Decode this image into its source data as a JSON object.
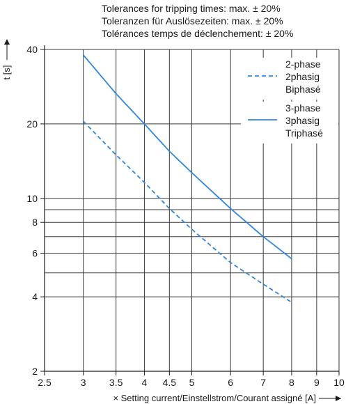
{
  "notes": [
    "Tolerances for tripping times: max. ± 20%",
    "Toleranzen für Auslösezeiten: max. ± 20%",
    "Tolérances temps de déclenchement: ± 20%"
  ],
  "chart_data": {
    "type": "line",
    "xlabel": "× Setting current/Einstellstrom/Courant assigné [A]",
    "ylabel": "t [s]",
    "x_scale": "log",
    "y_scale": "log",
    "xlim": [
      2.5,
      10
    ],
    "ylim": [
      2,
      40
    ],
    "x_ticks": [
      2.5,
      3,
      3.5,
      4,
      4.5,
      5,
      6,
      7,
      8,
      9,
      10
    ],
    "x_tick_labels": [
      "2.5",
      "3",
      "3.5",
      "4",
      "4.5",
      "5",
      "6",
      "7",
      "8",
      "9",
      "10"
    ],
    "y_ticks": [
      2,
      4,
      6,
      8,
      10,
      20,
      40
    ],
    "y_tick_labels": [
      "2",
      "4",
      "6",
      "8",
      "10",
      "20",
      "40"
    ],
    "y_grid_extra": [
      5,
      7,
      9
    ],
    "grid": true,
    "legend_position": "top-right",
    "series": [
      {
        "name": "2-phase\n2phasig\nBiphasé",
        "style": "dashed",
        "color": "#2e86de",
        "x": [
          3,
          3.5,
          4,
          4.5,
          5,
          6,
          7,
          8
        ],
        "y": [
          20.5,
          15.0,
          11.6,
          9.1,
          7.5,
          5.5,
          4.5,
          3.8
        ]
      },
      {
        "name": "3-phase\n3phasig\nTriphasé",
        "style": "solid",
        "color": "#2e86de",
        "x": [
          3,
          3.5,
          4,
          4.5,
          5,
          6,
          7,
          8
        ],
        "y": [
          38.0,
          26.5,
          20.0,
          15.5,
          12.7,
          9.1,
          7.0,
          5.7
        ]
      }
    ]
  }
}
